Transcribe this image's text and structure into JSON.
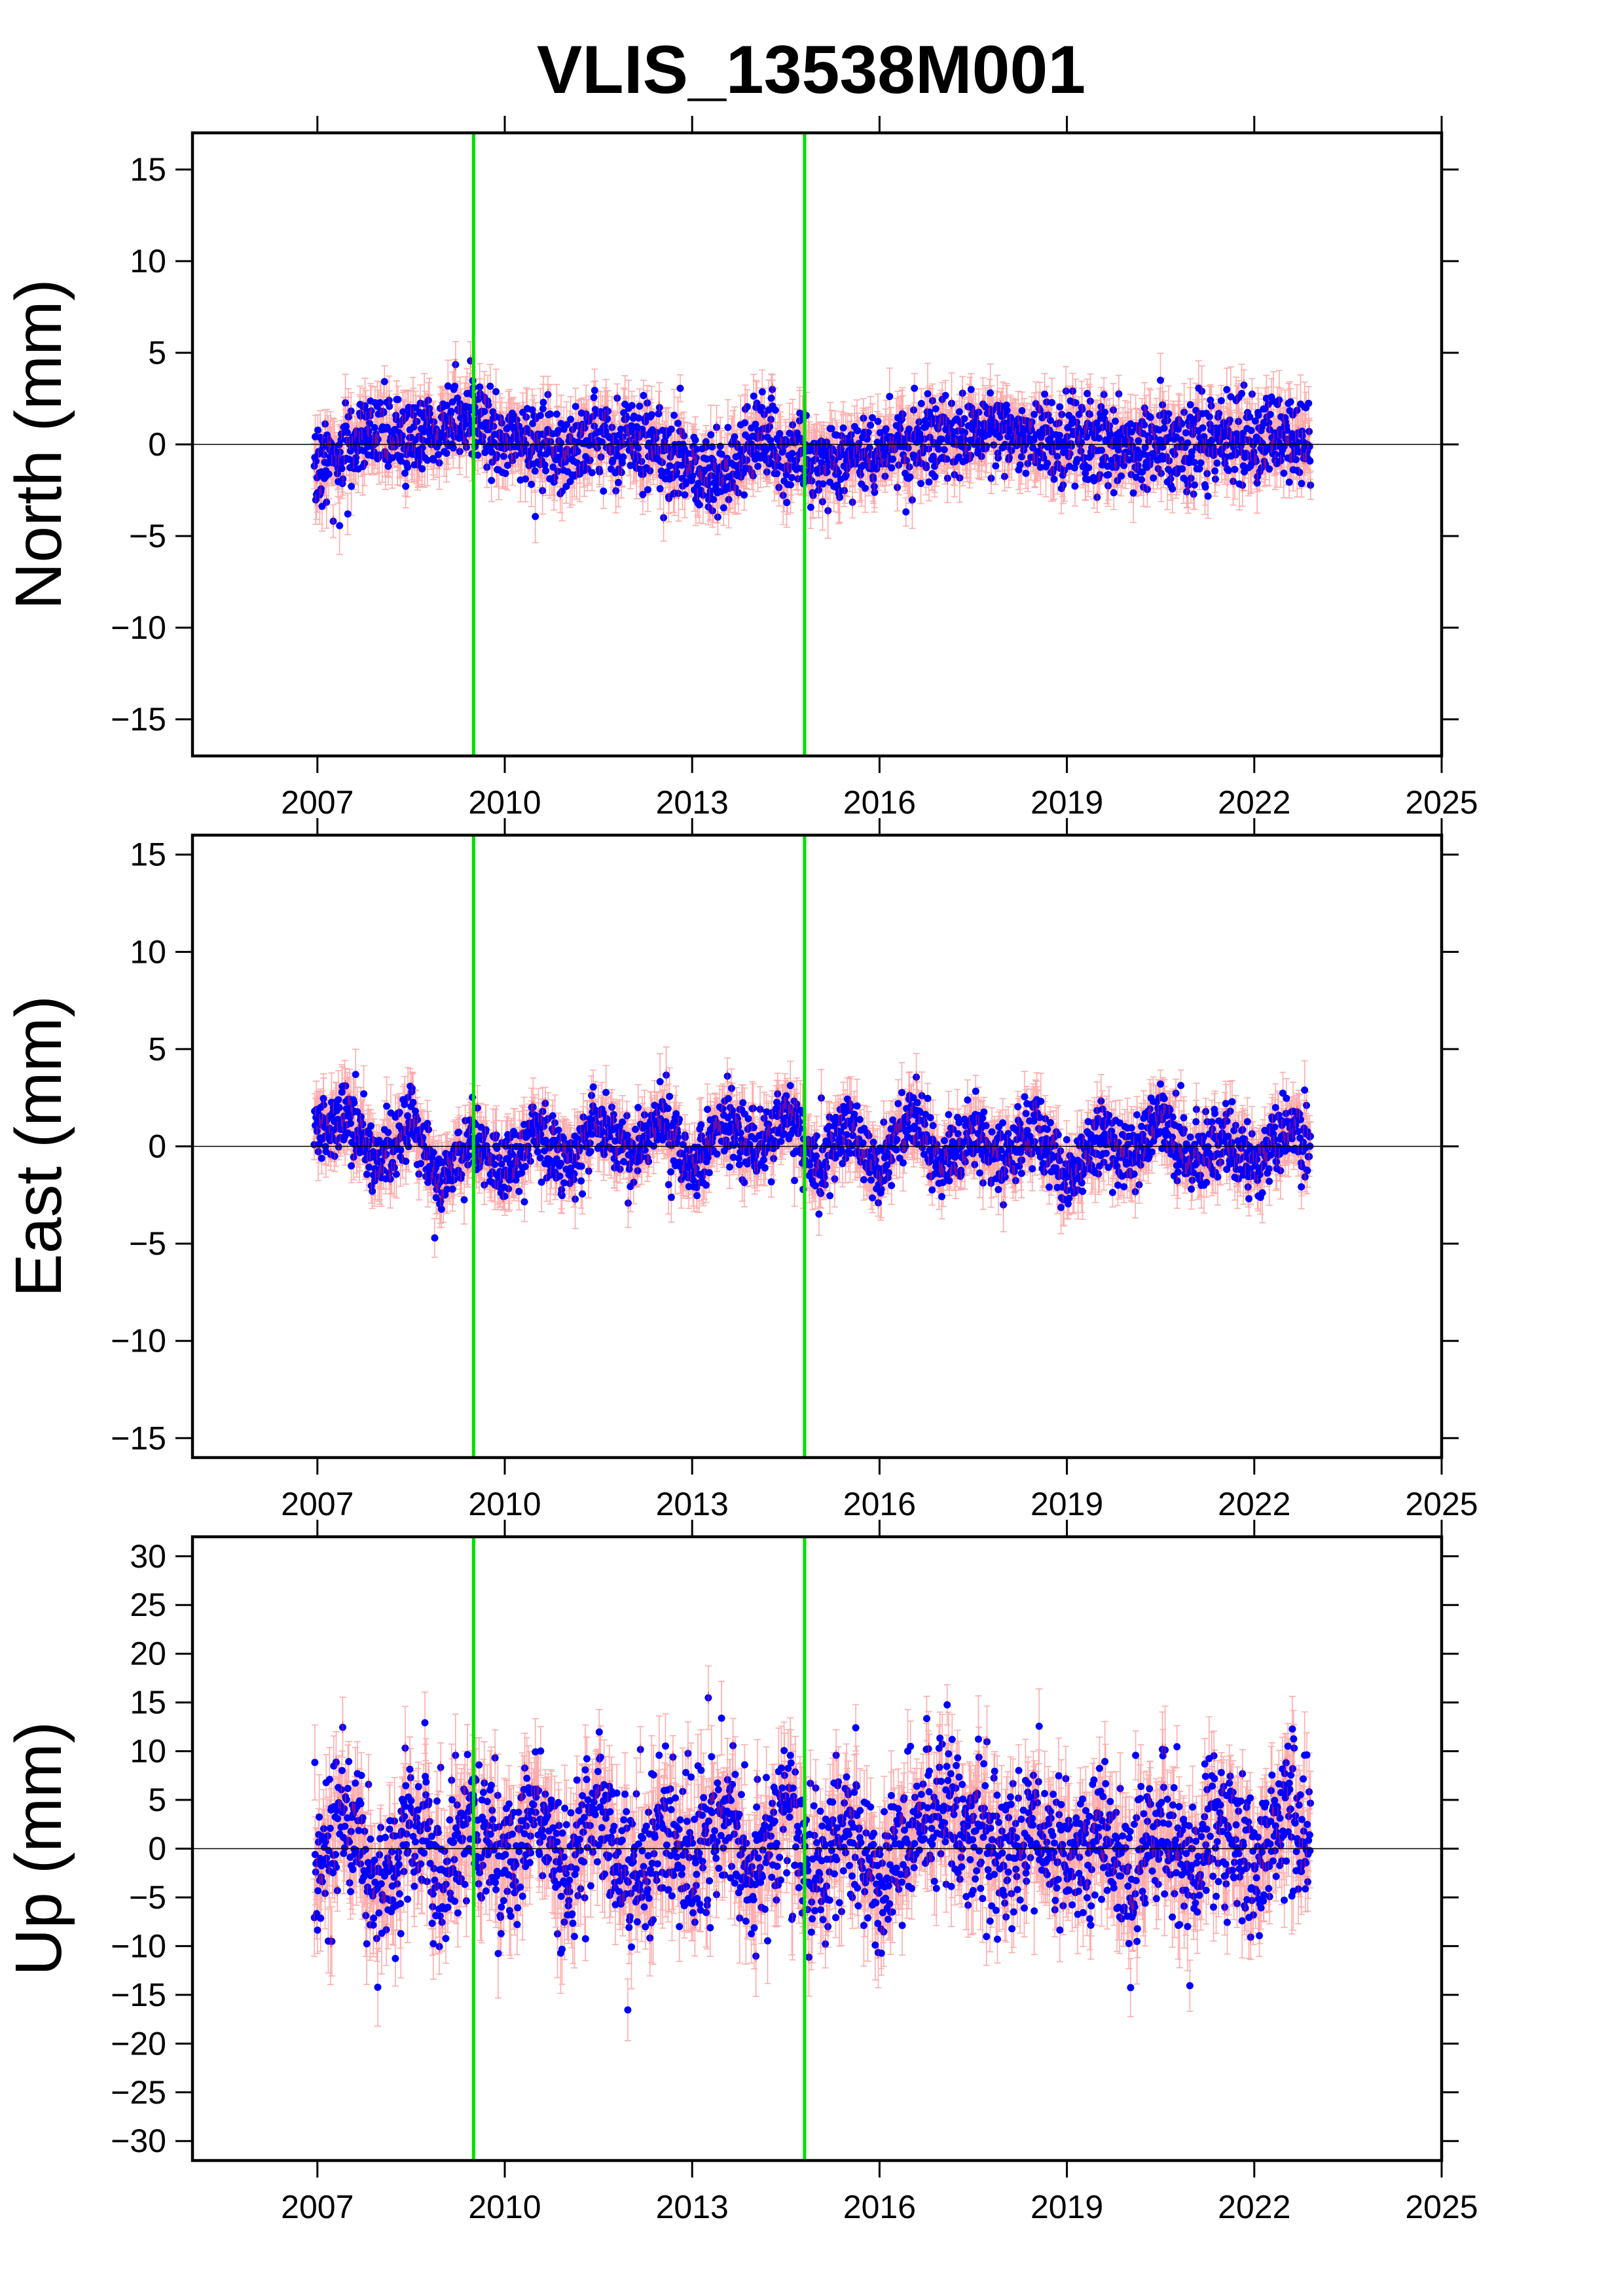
{
  "chart_data": {
    "title": "VLIS_13538M001",
    "type": "scatter",
    "x_tick_labels": [
      "2007",
      "2010",
      "2013",
      "2016",
      "2019",
      "2022",
      "2025"
    ],
    "x_ticks": [
      2007,
      2010,
      2013,
      2016,
      2019,
      2022,
      2025
    ],
    "xlim": [
      2005.0,
      2025.0
    ],
    "x_data_range": [
      2006.95,
      2022.9
    ],
    "breaks": [
      2009.5,
      2014.8
    ],
    "colors": {
      "points": "#0000ff",
      "errorbars": "#ff6666",
      "breaks": "#00e000",
      "zero_line": "#000000"
    },
    "grid": false,
    "legend": "none",
    "panels": [
      {
        "ylabel": "North (mm)",
        "ylim": [
          -17,
          17
        ],
        "yticks": [
          -15,
          -10,
          -5,
          0,
          5,
          10,
          15
        ],
        "ytick_labels": [
          "−15",
          "−10",
          "−5",
          "0",
          "5",
          "10",
          "15"
        ],
        "noise_sd": 1.1,
        "error_mm": 1.2,
        "series": [
          {
            "x": [
              2007.0,
              2007.5,
              2008.0,
              2008.5,
              2009.0,
              2009.5,
              2010.0,
              2010.5,
              2011.0,
              2011.5,
              2012.0,
              2012.5,
              2013.0,
              2013.5,
              2014.0,
              2014.5,
              2015.0,
              2015.5,
              2016.0,
              2016.5,
              2017.0,
              2017.5,
              2018.0,
              2018.5,
              2019.0,
              2019.5,
              2020.0,
              2020.5,
              2021.0,
              2021.5,
              2022.0,
              2022.5,
              2022.9
            ],
            "y": [
              -0.8,
              -0.5,
              1.0,
              0.2,
              1.0,
              1.8,
              -0.3,
              0.2,
              -0.5,
              0.3,
              0.5,
              -0.3,
              -1.5,
              -2.0,
              0.3,
              -0.6,
              -1.0,
              -0.7,
              -0.3,
              0.2,
              0.5,
              0.4,
              0.8,
              0.3,
              0.2,
              0.1,
              -0.2,
              0.3,
              -0.1,
              0.5,
              0.1,
              0.4,
              0.0
            ]
          }
        ]
      },
      {
        "ylabel": "East (mm)",
        "ylim": [
          -16,
          16
        ],
        "yticks": [
          -15,
          -10,
          -5,
          0,
          5,
          10,
          15
        ],
        "ytick_labels": [
          "−15",
          "−10",
          "−5",
          "0",
          "5",
          "10",
          "15"
        ],
        "noise_sd": 0.9,
        "error_mm": 1.1,
        "series": [
          {
            "x": [
              2007.0,
              2007.5,
              2008.0,
              2008.5,
              2009.0,
              2009.5,
              2010.0,
              2010.5,
              2011.0,
              2011.5,
              2012.0,
              2012.5,
              2013.0,
              2013.5,
              2014.0,
              2014.5,
              2015.0,
              2015.5,
              2016.0,
              2016.5,
              2017.0,
              2017.5,
              2018.0,
              2018.5,
              2019.0,
              2019.5,
              2020.0,
              2020.5,
              2021.0,
              2021.5,
              2022.0,
              2022.5,
              2022.9
            ],
            "y": [
              1.0,
              1.5,
              -1.0,
              1.2,
              -2.0,
              0.5,
              -1.5,
              0.8,
              -0.8,
              1.4,
              -0.5,
              1.5,
              -1.2,
              1.3,
              -0.3,
              1.5,
              -1.0,
              1.2,
              -1.5,
              1.8,
              -1.2,
              0.8,
              -1.0,
              1.3,
              -2.0,
              0.5,
              -0.8,
              1.5,
              -1.0,
              0.5,
              -1.0,
              0.8,
              0.0
            ]
          }
        ]
      },
      {
        "ylabel": "Up (mm)",
        "ylim": [
          -32,
          32
        ],
        "yticks": [
          -30,
          -25,
          -20,
          -15,
          -10,
          -5,
          0,
          5,
          10,
          15,
          20,
          25,
          30
        ],
        "ytick_labels": [
          "−30",
          "−25",
          "−20",
          "−15",
          "−10",
          "−5",
          "0",
          "5",
          "10",
          "15",
          "20",
          "25",
          "30"
        ],
        "noise_sd": 3.8,
        "error_mm": 3.3,
        "series": [
          {
            "x": [
              2007.0,
              2007.5,
              2008.0,
              2008.5,
              2009.0,
              2009.5,
              2010.0,
              2010.5,
              2011.0,
              2011.5,
              2012.0,
              2012.5,
              2013.0,
              2013.5,
              2014.0,
              2014.5,
              2015.0,
              2015.5,
              2016.0,
              2016.5,
              2017.0,
              2017.5,
              2018.0,
              2018.5,
              2019.0,
              2019.5,
              2020.0,
              2020.5,
              2021.0,
              2021.5,
              2022.0,
              2022.5,
              2022.9
            ],
            "y": [
              -2.0,
              4.0,
              -5.0,
              3.0,
              -3.0,
              3.0,
              -2.0,
              4.0,
              -4.0,
              5.0,
              -4.0,
              3.0,
              -2.0,
              4.0,
              -3.0,
              4.0,
              -3.0,
              3.0,
              -4.0,
              2.0,
              4.0,
              2.0,
              -1.0,
              3.0,
              -2.0,
              2.0,
              -4.0,
              3.0,
              -2.0,
              3.0,
              -3.0,
              4.0,
              0.0
            ]
          }
        ]
      }
    ]
  }
}
